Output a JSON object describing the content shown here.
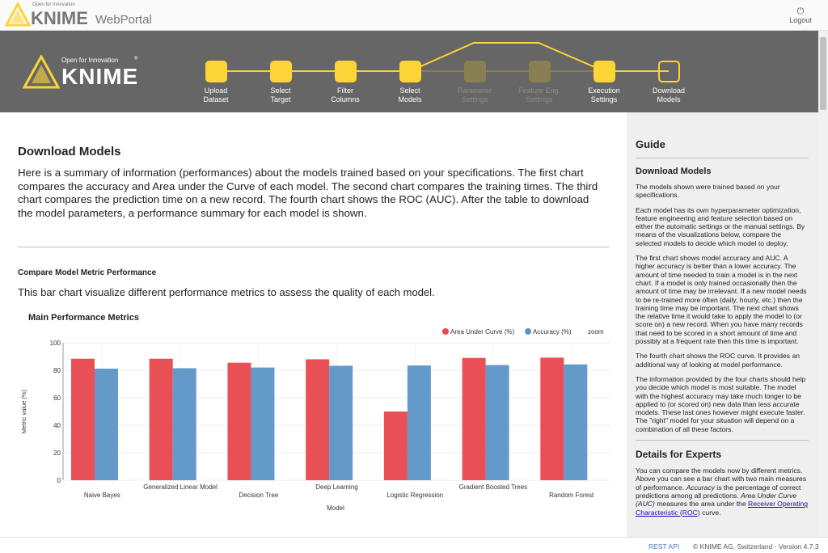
{
  "header": {
    "tagline": "Open for Innovation",
    "brand": "KNIME",
    "product": "WebPortal",
    "logout_label": "Logout",
    "logout_icon": "power-icon"
  },
  "banner": {
    "tagline": "Open for Innovation",
    "brand": "KNIME",
    "reg": "®"
  },
  "steps": [
    {
      "label1": "Upload",
      "label2": "Dataset",
      "state": "done"
    },
    {
      "label1": "Select",
      "label2": "Target",
      "state": "done"
    },
    {
      "label1": "Filter",
      "label2": "Columns",
      "state": "done"
    },
    {
      "label1": "Select",
      "label2": "Models",
      "state": "done"
    },
    {
      "label1": "Parameter",
      "label2": "Settings",
      "state": "skipped"
    },
    {
      "label1": "Feature Eng.",
      "label2": "Settings",
      "state": "skipped"
    },
    {
      "label1": "Execution",
      "label2": "Settings",
      "state": "done"
    },
    {
      "label1": "Download",
      "label2": "Models",
      "state": "current"
    }
  ],
  "colors": {
    "accent": "#fdd435",
    "banner": "#666666",
    "auc": "#e8474c",
    "accuracy": "#5b95c7"
  },
  "main": {
    "title": "Download Models",
    "intro": "Here is a summary of information (performances) about the models trained based on your specifications. The first chart compares the accuracy and Area under the Curve of each model. The second chart compares the training times. The third chart compares the prediction time on a new record. The fourth chart shows the ROC (AUC). After the table to download the model parameters, a performance summary for each model is shown.",
    "section_title": "Compare Model Metric Performance",
    "section_desc": "This bar chart visualize different performance metrics to assess the quality of each model."
  },
  "chart_data": {
    "type": "bar",
    "title": "Main Performance Metrics",
    "xlabel": "Model",
    "ylabel": "Metric value (%)",
    "ylim": [
      0,
      100
    ],
    "yticks": [
      0,
      20,
      40,
      60,
      80,
      100
    ],
    "grid": true,
    "legend_position": "top-right",
    "zoom_label": "zoom",
    "categories": [
      "Naive Bayes",
      "Generalized Linear Model",
      "Decision Tree",
      "Deep Learning",
      "Logistic Regression",
      "Gradient Boosted Trees",
      "Random Forest"
    ],
    "series": [
      {
        "name": "Area Under Curve (%)",
        "color": "#e8474c",
        "values": [
          88.4,
          88.4,
          85.5,
          88.0,
          50.0,
          89.0,
          89.2
        ]
      },
      {
        "name": "Accuracy (%)",
        "color": "#5b95c7",
        "values": [
          81.2,
          81.5,
          82.0,
          83.3,
          83.5,
          83.8,
          84.3
        ]
      }
    ]
  },
  "sidebar": {
    "title": "Guide",
    "section1": "Download Models",
    "p1": "The models shown were trained based on your specifications.",
    "p2": "Each model has its own hyperparameter optimization, feature engineering and feature selection based on either the automatic settings or the manual settings. By means of the visualizations below, compare the selected models to decide which model to deploy.",
    "p3": "The first chart shows model accuracy and AUC. A higher accuracy is better than a lower accuracy. The amount of time needed to train a model is in the next chart. If a model is only trained occasionally then the amount of time may be irrelevant. If a new model needs to be re-trained more often (daily, hourly, etc.) then the training time may be important. The next chart shows the relative time it would take to apply the model to (or score on) a new record. When you have many records that need to be scored in a short amount of time and possibly at a frequent rate then this time is important.",
    "p4": "The fourth chart shows the ROC curve. It provides an additional way of looking at model performance.",
    "p5": "The information provided by the four charts should help you decide which model is most suitable. The model with the highest accuracy may take much longer to be applied to (or scored on) new data than less accurate models. These last ones however might execute faster. The \"right\" model for your situation will depend on a combination of all these factors.",
    "section2": "Details for Experts",
    "p6a": "You can compare the models now by different metrics. Above you can see a bar chart with two main measures of performance. ",
    "p6b": "Accuracy",
    "p6c": " is the percentage of correct predictions among all predictions. ",
    "p6d": "Area Under Curve (AUC)",
    "p6e": " measures the area under the ",
    "p6link": "Receiver Operating Characteristic (ROC)",
    "p6f": " curve."
  },
  "footer": {
    "rest": "REST API",
    "copyright": "© KNIME AG, Switzerland - Version 4.7.3"
  }
}
